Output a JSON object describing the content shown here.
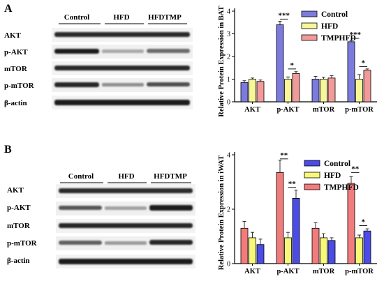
{
  "panels": [
    {
      "letter": "A",
      "blot": {
        "groups": [
          "Control",
          "HFD",
          "HFDTMP"
        ],
        "rows": [
          {
            "label": "AKT"
          },
          {
            "label": "p-AKT"
          },
          {
            "label": "mTOR"
          },
          {
            "label": "p-mTOR"
          },
          {
            "label": "β-actin"
          }
        ]
      }
    },
    {
      "letter": "B",
      "blot": {
        "groups": [
          "Control",
          "HFD",
          "HFDTMP"
        ],
        "rows": [
          {
            "label": "AKT"
          },
          {
            "label": "p-AKT"
          },
          {
            "label": "mTOR"
          },
          {
            "label": "p-mTOR"
          },
          {
            "label": "β-actin"
          }
        ]
      }
    }
  ],
  "chart_data": [
    {
      "type": "bar",
      "title": "",
      "xlabel": "",
      "ylabel": "Relative Protein Expression in BAT",
      "categories": [
        "AKT",
        "p-AKT",
        "mTOR",
        "p-mTOR"
      ],
      "ylim": [
        0,
        4
      ],
      "yticks": [
        0,
        1,
        2,
        3,
        4
      ],
      "legend_position": "top-right",
      "series": [
        {
          "name": "Control",
          "color": "#7b7bde",
          "values": [
            0.85,
            3.4,
            1.0,
            2.65
          ],
          "errors": [
            0.08,
            0.15,
            0.12,
            0.06
          ]
        },
        {
          "name": "HFD",
          "color": "#f7f79a",
          "values": [
            1.0,
            1.0,
            1.0,
            1.0
          ],
          "errors": [
            0.05,
            0.1,
            0.08,
            0.2
          ]
        },
        {
          "name": "TMPHFD",
          "color": "#f29a9a",
          "values": [
            0.9,
            1.25,
            1.05,
            1.4
          ],
          "errors": [
            0.06,
            0.08,
            0.1,
            0.05
          ]
        }
      ],
      "significance": [
        {
          "category": 1,
          "from": 0,
          "to": 1,
          "label": "***",
          "y": 3.65
        },
        {
          "category": 1,
          "from": 1,
          "to": 2,
          "label": "*",
          "y": 1.45
        },
        {
          "category": 3,
          "from": 0,
          "to": 1,
          "label": "***",
          "y": 2.8
        },
        {
          "category": 3,
          "from": 1,
          "to": 2,
          "label": "*",
          "y": 1.55
        }
      ]
    },
    {
      "type": "bar",
      "title": "",
      "xlabel": "",
      "ylabel": "Relative Protein Expression in iWAT",
      "categories": [
        "AKT",
        "p-AKT",
        "mTOR",
        "p-mTOR"
      ],
      "ylim": [
        0,
        4
      ],
      "yticks": [
        0,
        2,
        4
      ],
      "legend_position": "top-right",
      "legend_order": [
        2,
        1,
        0
      ],
      "series": [
        {
          "name": "TMPHFD",
          "color": "#f27c7c",
          "values": [
            1.3,
            3.35,
            1.3,
            2.95
          ],
          "errors": [
            0.25,
            0.45,
            0.2,
            0.25
          ]
        },
        {
          "name": "HFD",
          "color": "#f7f77a",
          "values": [
            0.95,
            0.95,
            0.95,
            0.95
          ],
          "errors": [
            0.2,
            0.2,
            0.15,
            0.1
          ]
        },
        {
          "name": "Control",
          "color": "#4b4be6",
          "values": [
            0.7,
            2.4,
            0.85,
            1.2
          ],
          "errors": [
            0.2,
            0.3,
            0.1,
            0.08
          ]
        }
      ],
      "significance": [
        {
          "category": 1,
          "from": 0,
          "to": 1,
          "label": "**",
          "y": 3.85
        },
        {
          "category": 1,
          "from": 1,
          "to": 2,
          "label": "**",
          "y": 2.8
        },
        {
          "category": 3,
          "from": 0,
          "to": 1,
          "label": "**",
          "y": 3.35
        },
        {
          "category": 3,
          "from": 1,
          "to": 2,
          "label": "*",
          "y": 1.4
        }
      ]
    }
  ]
}
